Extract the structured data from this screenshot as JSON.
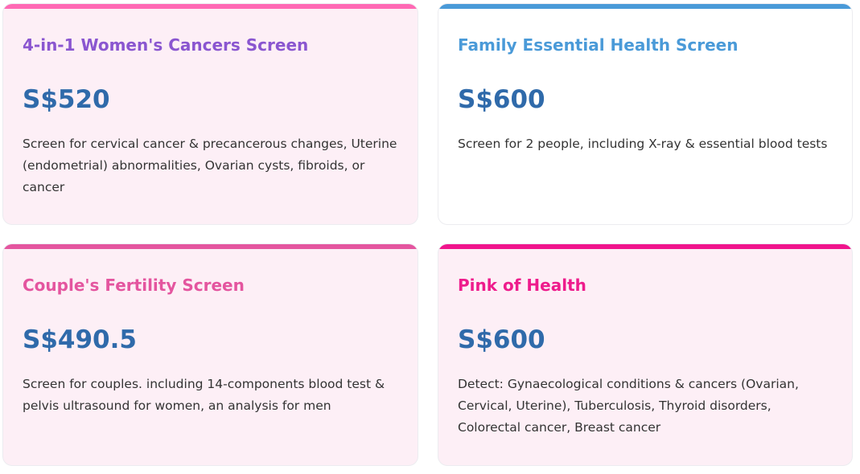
{
  "cards": [
    {
      "title": "4-in-1 Women's Cancers Screen",
      "price": "S$520",
      "description": "Screen for cervical cancer & precancerous changes, Uterine (endometrial) abnormalities, Ovarian cysts, fibroids, or cancer",
      "accent_color": "#ff69b4",
      "title_color": "#8a56d0"
    },
    {
      "title": "Family Essential Health Screen",
      "price": "S$600",
      "description": "Screen for 2 people, including X-ray & essential blood tests",
      "accent_color": "#4a9ad8",
      "title_color": "#4a9ad8"
    },
    {
      "title": "Couple's Fertility Screen",
      "price": "S$490.5",
      "description": "Screen for couples. including 14-components blood test & pelvis ultrasound for women, an analysis for men",
      "accent_color": "#e4559f",
      "title_color": "#e4559f"
    },
    {
      "title": "Pink of Health",
      "price": "S$600",
      "description": "Detect: Gynaecological conditions & cancers (Ovarian, Cervical, Uterine), Tuberculosis, Thyroid disorders, Colorectal cancer, Breast cancer",
      "accent_color": "#f0148c",
      "title_color": "#ee1c8c"
    }
  ],
  "price_color": "#2f6aaa"
}
